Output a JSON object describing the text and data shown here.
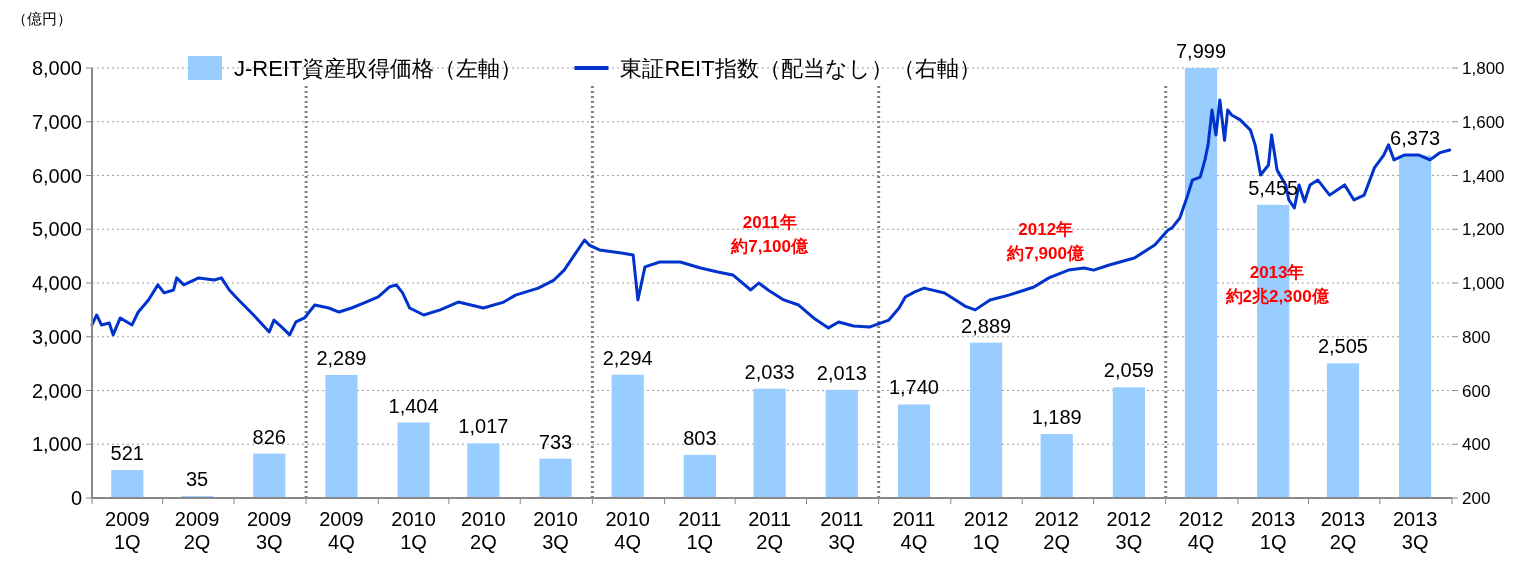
{
  "chart_data": {
    "type": "bar",
    "ylabel": "（億円）",
    "x": [
      "2009-02-15",
      "2009-05-15",
      "2009-08-15",
      "2009-11-15",
      "2010-02-15",
      "2010-05-15",
      "2010-08-15",
      "2010-11-15",
      "2011-02-15",
      "2011-05-15",
      "2011-08-15",
      "2011-11-15",
      "2012-02-15",
      "2012-05-15",
      "2012-08-15",
      "2012-11-15",
      "2013-02-15",
      "2013-05-15",
      "2013-08-15"
    ],
    "xlim": [
      "2009-01-01",
      "2013-10-01"
    ],
    "xticks": [
      {
        "value": "2009-01-01",
        "label": null
      },
      {
        "value": "2009-02-15",
        "label": "2009\n1Q"
      },
      {
        "value": "2009-04-01",
        "label": null
      },
      {
        "value": "2009-05-15",
        "label": "2009\n2Q"
      },
      {
        "value": "2009-07-01",
        "label": null
      },
      {
        "value": "2009-08-15",
        "label": "2009\n3Q"
      },
      {
        "value": "2009-10-01",
        "label": null
      },
      {
        "value": "2009-11-15",
        "label": "2009\n4Q"
      },
      {
        "value": "2010-01-01",
        "label": null
      },
      {
        "value": "2010-02-15",
        "label": "2010\n1Q"
      },
      {
        "value": "2010-04-01",
        "label": null
      },
      {
        "value": "2010-05-15",
        "label": "2010\n2Q"
      },
      {
        "value": "2010-07-01",
        "label": null
      },
      {
        "value": "2010-08-15",
        "label": "2010\n3Q"
      },
      {
        "value": "2010-10-01",
        "label": null
      },
      {
        "value": "2010-11-15",
        "label": "2010\n4Q"
      },
      {
        "value": "2011-01-01",
        "label": null
      },
      {
        "value": "2011-02-15",
        "label": "2011\n1Q"
      },
      {
        "value": "2011-04-01",
        "label": null
      },
      {
        "value": "2011-05-15",
        "label": "2011\n2Q"
      },
      {
        "value": "2011-07-01",
        "label": null
      },
      {
        "value": "2011-08-15",
        "label": "2011\n3Q"
      },
      {
        "value": "2011-10-01",
        "label": null
      },
      {
        "value": "2011-11-15",
        "label": "2011\n4Q"
      },
      {
        "value": "2012-01-01",
        "label": null
      },
      {
        "value": "2012-02-15",
        "label": "2012\n1Q"
      },
      {
        "value": "2012-04-01",
        "label": null
      },
      {
        "value": "2012-05-15",
        "label": "2012\n2Q"
      },
      {
        "value": "2012-07-01",
        "label": null
      },
      {
        "value": "2012-08-15",
        "label": "2012\n3Q"
      },
      {
        "value": "2012-10-01",
        "label": null
      },
      {
        "value": "2012-11-15",
        "label": "2012\n4Q"
      },
      {
        "value": "2013-01-01",
        "label": null
      },
      {
        "value": "2013-02-15",
        "label": "2013\n1Q"
      },
      {
        "value": "2013-04-01",
        "label": null
      },
      {
        "value": "2013-05-15",
        "label": "2013\n2Q"
      },
      {
        "value": "2013-07-01",
        "label": null
      },
      {
        "value": "2013-08-15",
        "label": "2013\n3Q"
      },
      {
        "value": "2013-10-01",
        "label": null
      }
    ],
    "series": [
      {
        "name": "J-REIT資産取得価格（左軸）",
        "color": "#99ccff",
        "values": [
          521,
          35,
          826,
          2289,
          1404,
          1017,
          733,
          2294,
          803,
          2033,
          2013,
          1740,
          2889,
          1189,
          2059,
          7999,
          5455,
          2505,
          6373
        ],
        "value_labels": [
          "521",
          "35",
          "826",
          "2,289",
          "1,404",
          "1,017",
          "733",
          "2,294",
          "803",
          "2,033",
          "2,013",
          "1,740",
          "2,889",
          "1,189",
          "2,059",
          "7,999",
          "5,455",
          "2,505",
          "6,373"
        ]
      },
      {
        "type": "line",
        "axis": "y2",
        "name": "東証REIT指数（配当なし）（右軸）",
        "color": "#0033cc",
        "x": [
          "2009-01-01",
          "2009-01-07",
          "2009-01-13",
          "2009-01-23",
          "2009-01-28",
          "2009-02-06",
          "2009-02-21",
          "2009-03-01",
          "2009-03-14",
          "2009-03-26",
          "2009-04-03",
          "2009-04-15",
          "2009-04-19",
          "2009-04-28",
          "2009-05-17",
          "2009-06-06",
          "2009-06-15",
          "2009-06-25",
          "2009-07-07",
          "2009-07-26",
          "2009-08-15",
          "2009-08-21",
          "2009-09-01",
          "2009-09-10",
          "2009-09-18",
          "2009-09-29",
          "2009-10-12",
          "2009-10-30",
          "2009-11-12",
          "2009-11-28",
          "2009-12-14",
          "2010-01-01",
          "2010-01-15",
          "2010-01-24",
          "2010-02-01",
          "2010-02-10",
          "2010-02-28",
          "2010-03-21",
          "2010-04-13",
          "2010-05-15",
          "2010-06-10",
          "2010-06-25",
          "2010-07-24",
          "2010-08-13",
          "2010-08-26",
          "2010-09-08",
          "2010-09-21",
          "2010-09-27",
          "2010-10-10",
          "2010-11-07",
          "2010-11-22",
          "2010-11-28",
          "2010-12-07",
          "2010-12-26",
          "2011-01-21",
          "2011-02-16",
          "2011-03-10",
          "2011-03-29",
          "2011-04-21",
          "2011-05-01",
          "2011-05-13",
          "2011-06-02",
          "2011-06-21",
          "2011-07-10",
          "2011-07-29",
          "2011-08-11",
          "2011-08-30",
          "2011-09-19",
          "2011-10-14",
          "2011-10-27",
          "2011-11-04",
          "2011-11-16",
          "2011-11-28",
          "2011-12-24",
          "2012-01-19",
          "2012-02-01",
          "2012-02-20",
          "2012-03-15",
          "2012-04-16",
          "2012-05-05",
          "2012-05-30",
          "2012-06-19",
          "2012-07-01",
          "2012-07-21",
          "2012-08-22",
          "2012-09-17",
          "2012-10-04",
          "2012-10-09",
          "2012-10-19",
          "2012-10-29",
          "2012-11-04",
          "2012-11-14",
          "2012-11-20",
          "2012-11-24",
          "2012-11-29",
          "2012-12-04",
          "2012-12-09",
          "2012-12-15",
          "2012-12-19",
          "2012-12-24",
          "2013-01-04",
          "2013-01-17",
          "2013-01-23",
          "2013-01-30",
          "2013-02-09",
          "2013-02-13",
          "2013-02-20",
          "2013-03-03",
          "2013-03-07",
          "2013-03-14",
          "2013-03-20",
          "2013-03-27",
          "2013-04-03",
          "2013-04-13",
          "2013-04-28",
          "2013-05-17",
          "2013-05-29",
          "2013-06-11",
          "2013-06-24",
          "2013-07-06",
          "2013-07-12",
          "2013-07-19",
          "2013-08-01",
          "2013-08-20",
          "2013-09-03",
          "2013-09-15",
          "2013-09-28"
        ],
        "values": [
          844,
          881,
          844,
          851,
          807,
          870,
          844,
          892,
          937,
          993,
          963,
          974,
          1019,
          993,
          1019,
          1011,
          1019,
          974,
          937,
          881,
          818,
          862,
          833,
          807,
          855,
          870,
          918,
          907,
          892,
          907,
          926,
          948,
          985,
          993,
          963,
          907,
          881,
          900,
          929,
          907,
          929,
          955,
          981,
          1011,
          1048,
          1104,
          1160,
          1141,
          1123,
          1112,
          1104,
          937,
          1060,
          1078,
          1078,
          1056,
          1041,
          1030,
          974,
          1000,
          974,
          937,
          918,
          870,
          833,
          855,
          840,
          836,
          862,
          907,
          948,
          967,
          981,
          963,
          914,
          900,
          937,
          955,
          985,
          1019,
          1048,
          1056,
          1048,
          1067,
          1093,
          1141,
          1197,
          1205,
          1242,
          1327,
          1383,
          1394,
          1458,
          1514,
          1644,
          1551,
          1681,
          1531,
          1644,
          1625,
          1607,
          1569,
          1514,
          1402,
          1439,
          1551,
          1420,
          1365,
          1309,
          1279,
          1365,
          1302,
          1365,
          1383,
          1327,
          1365,
          1309,
          1327,
          1428,
          1476,
          1514,
          1458,
          1476,
          1476,
          1458,
          1484,
          1495
        ]
      }
    ],
    "ylim": [
      0,
      8000
    ],
    "yticks": [
      {
        "value": 0,
        "label": "0"
      },
      {
        "value": 1000,
        "label": "1,000"
      },
      {
        "value": 2000,
        "label": "2,000"
      },
      {
        "value": 3000,
        "label": "3,000"
      },
      {
        "value": 4000,
        "label": "4,000"
      },
      {
        "value": 5000,
        "label": "5,000"
      },
      {
        "value": 6000,
        "label": "6,000"
      },
      {
        "value": 7000,
        "label": "7,000"
      },
      {
        "value": 8000,
        "label": "8,000"
      }
    ],
    "y2lim": [
      200,
      1800
    ],
    "y2ticks": [
      200,
      400,
      600,
      800,
      {
        "value": 1000,
        "label": "1,000"
      },
      {
        "value": 1200,
        "label": "1,200"
      },
      {
        "value": 1400,
        "label": "1,400"
      },
      {
        "value": 1600,
        "label": "1,600"
      },
      {
        "value": 1800,
        "label": "1,800"
      }
    ],
    "grid": "y",
    "legend": "top",
    "ref_lines": [
      {
        "axis": "x",
        "value": "2009-10-01",
        "color": "#808080",
        "line_style": "dotted"
      },
      {
        "axis": "x",
        "value": "2010-10-01",
        "color": "#808080",
        "line_style": "dotted"
      },
      {
        "axis": "x",
        "value": "2011-10-01",
        "color": "#808080",
        "line_style": "dotted"
      },
      {
        "axis": "x",
        "value": "2012-10-01",
        "color": "#808080",
        "line_style": "dotted"
      }
    ],
    "annotations": [
      "2011年",
      "約7,100億",
      "2012年",
      "約7,900億",
      "2013年",
      "約2兆2,300億"
    ]
  }
}
